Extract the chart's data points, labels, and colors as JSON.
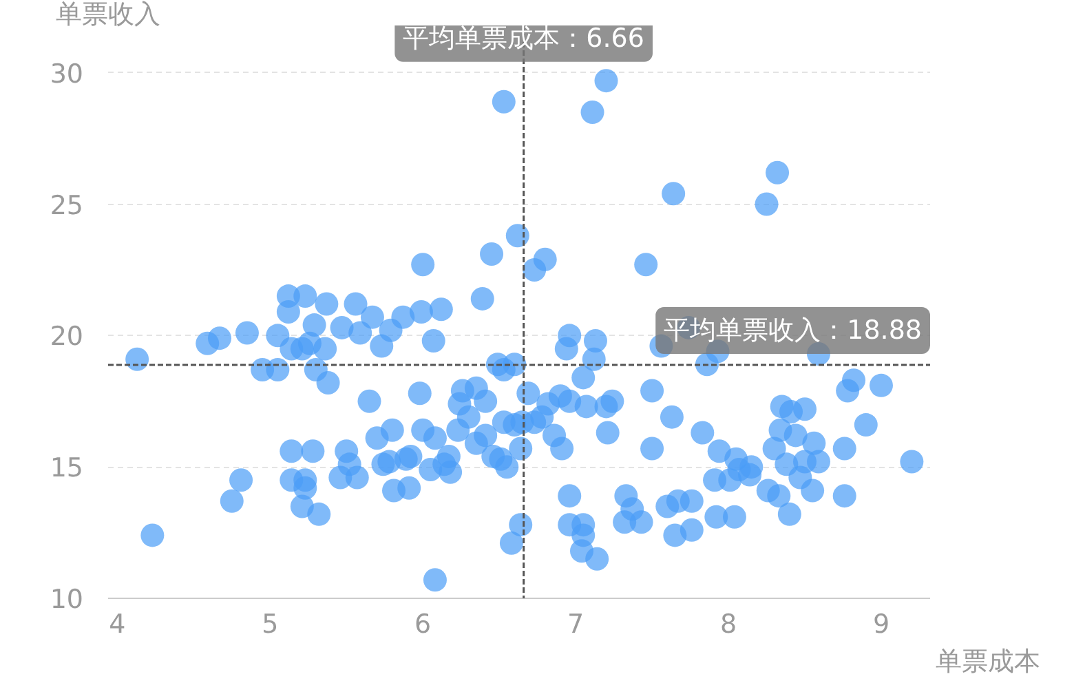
{
  "chart_data": {
    "type": "scatter",
    "xlabel": "单票成本",
    "ylabel": "单票收入",
    "xlim": [
      3.94,
      9.32
    ],
    "ylim": [
      10,
      31.8
    ],
    "xticks": [
      4,
      5,
      6,
      7,
      8,
      9
    ],
    "yticks": [
      10,
      15,
      20,
      25,
      30
    ],
    "grid": "y",
    "marker": "circle",
    "ref_lines": [
      {
        "axis": "x",
        "value": 6.66,
        "label": "平均单票成本：6.66",
        "line_style": "dashed",
        "color": "#555555"
      },
      {
        "axis": "y",
        "value": 18.88,
        "label": "平均单票收入：18.88",
        "line_style": "dashed",
        "color": "#555555"
      }
    ],
    "series": [
      {
        "color": "#4a9cf6",
        "x": [
          4.13,
          4.23,
          4.59,
          4.67,
          4.75,
          4.81,
          4.85,
          4.95,
          5.05,
          5.05,
          5.12,
          5.12,
          5.23,
          5.29,
          5.37,
          5.14,
          5.21,
          5.26,
          5.36,
          5.14,
          5.28,
          5.14,
          5.23,
          5.23,
          5.21,
          5.32,
          5.38,
          5.3,
          5.47,
          5.56,
          5.59,
          5.67,
          5.73,
          5.79,
          5.87,
          5.99,
          6.12,
          6.0,
          6.07,
          5.65,
          5.7,
          5.8,
          5.5,
          5.52,
          5.46,
          5.57,
          5.74,
          5.78,
          5.89,
          5.92,
          5.81,
          5.91,
          5.98,
          6.0,
          6.08,
          6.05,
          6.14,
          6.18,
          6.08,
          6.17,
          6.23,
          6.3,
          6.24,
          6.26,
          6.35,
          6.41,
          6.39,
          6.45,
          6.53,
          6.49,
          6.53,
          6.6,
          6.62,
          6.35,
          6.41,
          6.46,
          6.51,
          6.55,
          6.53,
          6.6,
          6.65,
          6.73,
          6.64,
          6.69,
          6.78,
          6.86,
          6.91,
          6.82,
          6.9,
          6.96,
          7.07,
          7.2,
          7.24,
          7.21,
          6.58,
          6.64,
          6.73,
          6.8,
          6.96,
          6.96,
          7.05,
          7.05,
          7.04,
          7.14,
          6.94,
          6.96,
          7.13,
          7.12,
          7.05,
          7.11,
          7.2,
          7.46,
          7.56,
          7.63,
          7.5,
          7.5,
          7.33,
          7.37,
          7.43,
          7.32,
          7.6,
          7.65,
          7.67,
          7.76,
          7.76,
          7.64,
          7.74,
          7.83,
          7.94,
          7.91,
          7.86,
          7.93,
          8.01,
          8.04,
          7.92,
          8.05,
          8.07,
          8.14,
          8.15,
          8.25,
          8.32,
          8.26,
          8.3,
          8.34,
          8.35,
          8.41,
          8.5,
          8.33,
          8.4,
          8.38,
          8.47,
          8.44,
          8.5,
          8.56,
          8.55,
          8.59,
          8.76,
          8.76,
          8.78,
          8.82,
          8.9,
          9.0,
          9.2,
          8.59
        ],
        "values": [
          19.1,
          12.4,
          19.7,
          19.9,
          13.7,
          14.5,
          20.1,
          18.7,
          18.7,
          20.0,
          21.5,
          20.9,
          21.5,
          20.4,
          21.2,
          19.5,
          19.5,
          19.7,
          19.5,
          15.6,
          15.6,
          14.5,
          14.5,
          14.2,
          13.5,
          13.2,
          18.2,
          18.7,
          20.3,
          21.2,
          20.1,
          20.7,
          19.6,
          20.2,
          20.7,
          20.9,
          21.0,
          22.7,
          19.8,
          17.5,
          16.1,
          16.4,
          15.6,
          15.1,
          14.6,
          14.6,
          15.1,
          15.2,
          15.3,
          15.4,
          14.1,
          14.2,
          17.8,
          16.4,
          16.1,
          14.9,
          15.1,
          14.8,
          10.7,
          15.4,
          16.4,
          16.9,
          17.4,
          17.9,
          18.0,
          17.5,
          21.4,
          23.1,
          28.9,
          18.9,
          18.7,
          18.9,
          23.8,
          15.9,
          16.2,
          15.4,
          15.3,
          15.0,
          16.7,
          16.6,
          16.7,
          16.7,
          15.7,
          17.8,
          16.9,
          16.2,
          15.7,
          17.4,
          17.7,
          17.5,
          17.3,
          17.3,
          17.5,
          16.3,
          12.1,
          12.8,
          22.5,
          22.9,
          13.9,
          12.8,
          12.8,
          12.4,
          11.8,
          11.5,
          19.5,
          20.0,
          19.8,
          19.1,
          18.4,
          28.5,
          29.7,
          22.7,
          19.6,
          16.9,
          17.9,
          15.7,
          13.9,
          13.4,
          12.9,
          12.9,
          13.5,
          12.4,
          13.7,
          13.7,
          12.6,
          25.4,
          20.3,
          16.3,
          15.6,
          14.5,
          18.9,
          19.4,
          14.5,
          13.1,
          13.1,
          15.3,
          14.9,
          14.7,
          15.0,
          25.0,
          26.2,
          14.1,
          15.7,
          16.4,
          17.3,
          17.1,
          17.2,
          13.9,
          13.2,
          15.1,
          14.6,
          16.2,
          15.2,
          15.9,
          14.1,
          15.2,
          13.9,
          15.7,
          17.9,
          18.3,
          16.6,
          18.1,
          15.2,
          19.3
        ]
      }
    ]
  }
}
